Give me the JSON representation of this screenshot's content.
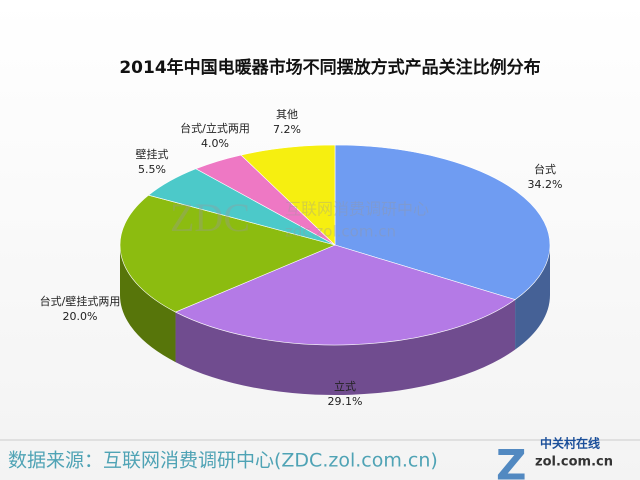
{
  "chart_data": {
    "type": "pie3d",
    "title": "2014年中国电暖器市场不同摆放方式产品关注比例分布",
    "categories": [
      "台式",
      "立式",
      "台式/壁挂式两用",
      "壁挂式",
      "台式/立式两用",
      "其他"
    ],
    "values": [
      34.2,
      29.1,
      20.0,
      5.5,
      4.0,
      7.2
    ],
    "value_labels": [
      "34.2%",
      "29.1%",
      "20.0%",
      "5.5%",
      "4.0%",
      "7.2%"
    ],
    "colors": [
      "#6f9cf2",
      "#b47ae6",
      "#8cbc10",
      "#4cc9c9",
      "#ee78c4",
      "#f6ef10"
    ],
    "source": "数据来源：互联网消费调研中心(ZDC.zol.com.cn)"
  },
  "watermark": {
    "brand": "ZDC",
    "name": "互联网消费调研中心",
    "url": "zdc.zol.com.cn"
  },
  "logo": {
    "name": "中关村在线",
    "url": "zol.com.cn"
  }
}
